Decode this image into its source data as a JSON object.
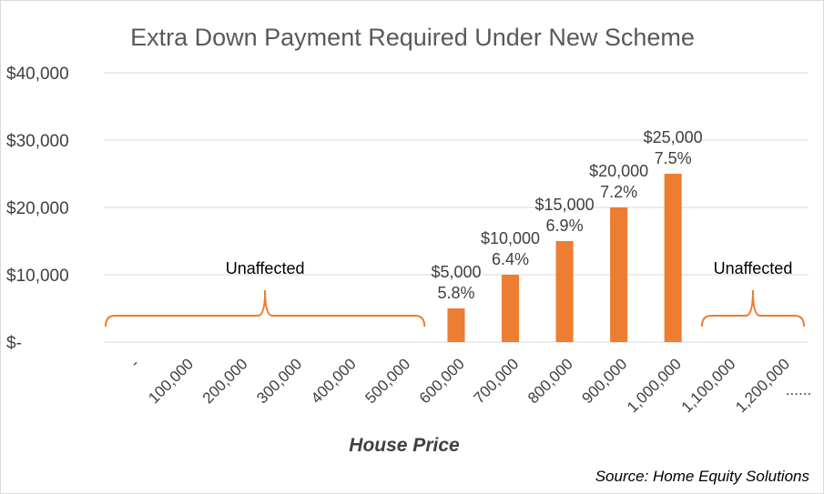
{
  "chart_data": {
    "type": "bar",
    "title": "Extra Down Payment Required Under New Scheme",
    "xlabel": "House Price",
    "ylabel": "",
    "ylim": [
      0,
      40000
    ],
    "yticks": [
      {
        "value": 0,
        "label": "$-"
      },
      {
        "value": 10000,
        "label": "$10,000"
      },
      {
        "value": 20000,
        "label": "$20,000"
      },
      {
        "value": 30000,
        "label": "$30,000"
      },
      {
        "value": 40000,
        "label": "$40,000"
      }
    ],
    "grid": true,
    "bar_color": "#ED7D31",
    "categories": [
      "-",
      "100,000",
      "200,000",
      "300,000",
      "400,000",
      "500,000",
      "600,000",
      "700,000",
      "800,000",
      "900,000",
      "1,000,000",
      "1,100,000",
      "1,200,000"
    ],
    "values": [
      0,
      0,
      0,
      0,
      0,
      0,
      5000,
      10000,
      15000,
      20000,
      25000,
      0,
      0
    ],
    "data_labels": [
      null,
      null,
      null,
      null,
      null,
      null,
      {
        "amount": "$5,000",
        "pct": "5.8%"
      },
      {
        "amount": "$10,000",
        "pct": "6.4%"
      },
      {
        "amount": "$15,000",
        "pct": "6.9%"
      },
      {
        "amount": "$20,000",
        "pct": "7.2%"
      },
      {
        "amount": "$25,000",
        "pct": "7.5%"
      },
      null,
      null
    ],
    "x_continuation": "......",
    "annotations": [
      {
        "text": "Unaffected",
        "from_category": 0,
        "to_category": 5
      },
      {
        "text": "Unaffected",
        "from_category": 11,
        "to_category": 12
      }
    ],
    "source": "Source: Home Equity Solutions"
  }
}
